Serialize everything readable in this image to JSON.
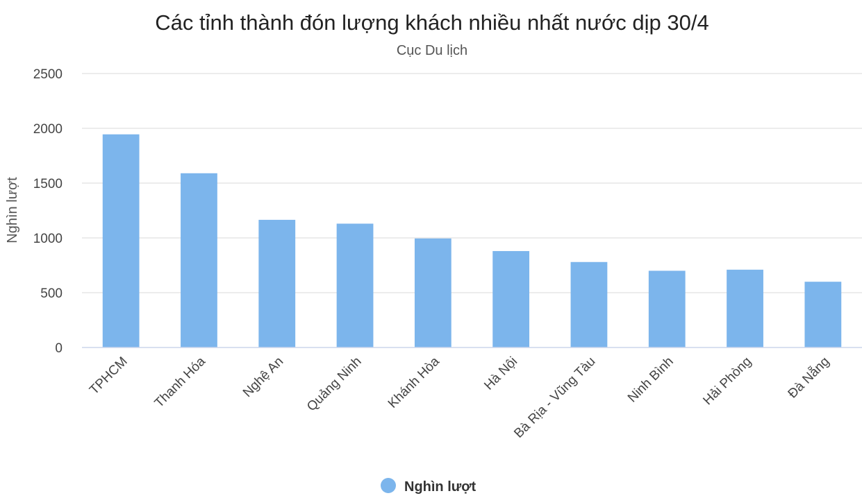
{
  "chart_data": {
    "type": "bar",
    "title": "Các tỉnh thành đón lượng khách nhiều nhất nước dịp 30/4",
    "subtitle": "Cục Du lịch",
    "ylabel": "Nghìn lượt",
    "xlabel": "",
    "ylim": [
      0,
      2500
    ],
    "yticks": [
      "0",
      "500",
      "1000",
      "1500",
      "2000",
      "2500"
    ],
    "categories": [
      "TPHCM",
      "Thanh Hóa",
      "Nghệ An",
      "Quảng Ninh",
      "Khánh Hòa",
      "Hà Nội",
      "Bà Rịa - Vũng Tàu",
      "Ninh Bình",
      "Hải Phòng",
      "Đà Nẵng"
    ],
    "series": [
      {
        "name": "Nghìn lượt",
        "values": [
          1945,
          1590,
          1165,
          1130,
          995,
          880,
          780,
          700,
          710,
          600
        ]
      }
    ],
    "grid": true,
    "legend_position": "bottom-center",
    "colors": {
      "bar": "#7cb5ec",
      "grid": "#e6e6e6",
      "axis": "#ccd6eb"
    }
  }
}
